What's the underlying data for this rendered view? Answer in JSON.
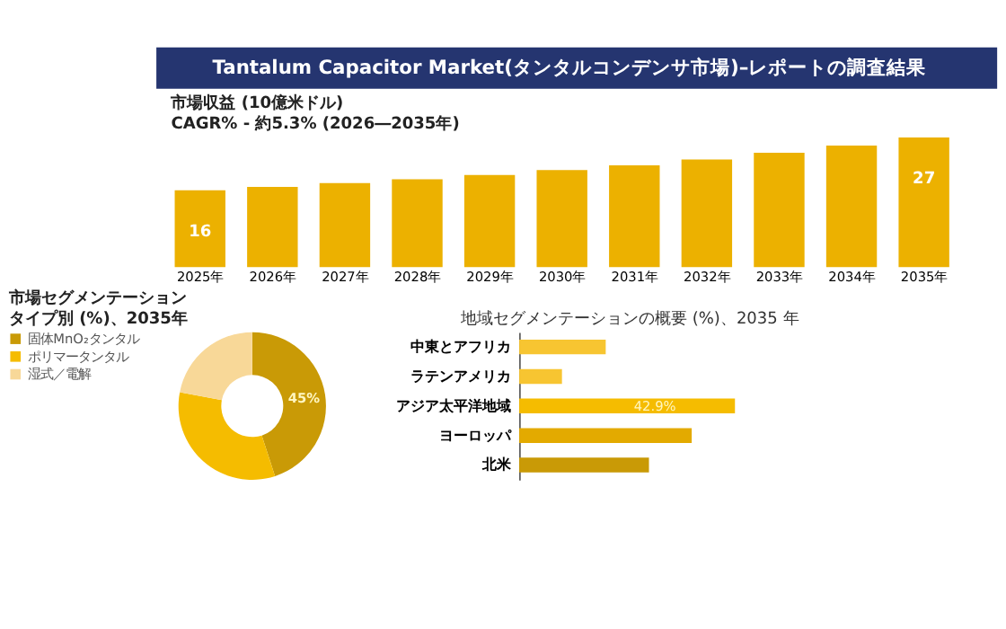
{
  "chart_data": [
    {
      "type": "bar",
      "title": "Tantalum Capacitor Market(タンタルコンデンサ市場)–レポートの調査結果",
      "subtitle": "市場収益 (10億米ドル)",
      "annotations": [
        "CAGR% - 約5.3% (2026―2035年)"
      ],
      "categories": [
        "2025年",
        "2026年",
        "2027年",
        "2028年",
        "2029年",
        "2030年",
        "2031年",
        "2032年",
        "2033年",
        "2034年",
        "2035年"
      ],
      "values": [
        16,
        16.7,
        17.5,
        18.3,
        19.2,
        20.2,
        21.2,
        22.4,
        23.8,
        25.3,
        27
      ],
      "value_labels": [
        "16",
        null,
        null,
        null,
        null,
        null,
        null,
        null,
        null,
        null,
        "27"
      ],
      "color": "#ecb100",
      "tick_labels": "x"
    },
    {
      "type": "donut",
      "title": "市場セグメンテーション",
      "subtitle": "タイプ別 (%)、2035年",
      "categories": [
        "固体MnO₂タンタル",
        "ポリマータンタル",
        "湿式／電解"
      ],
      "values": [
        45,
        33,
        22
      ],
      "colors": [
        "#c99a06",
        "#f5bc00",
        "#f8d898"
      ],
      "value_labels": [
        "45%",
        null,
        null
      ],
      "legend": "left"
    },
    {
      "type": "bar",
      "orientation": "horizontal",
      "title": "地域セグメンテーションの概要 (%)、2035 年",
      "categories": [
        "中東とアフリカ",
        "ラテンアメリカ",
        "アジア太平洋地域",
        "ヨーロッパ",
        "北米"
      ],
      "values": [
        17.2,
        8.5,
        42.9,
        34.3,
        25.8
      ],
      "colors": [
        "#f7c531",
        "#f7c531",
        "#f5bc00",
        "#e3aa00",
        "#c99a06"
      ],
      "value_labels": [
        null,
        null,
        "42.9%",
        null,
        null
      ],
      "xlim": [
        0,
        44
      ],
      "tick_labels": "y"
    }
  ]
}
